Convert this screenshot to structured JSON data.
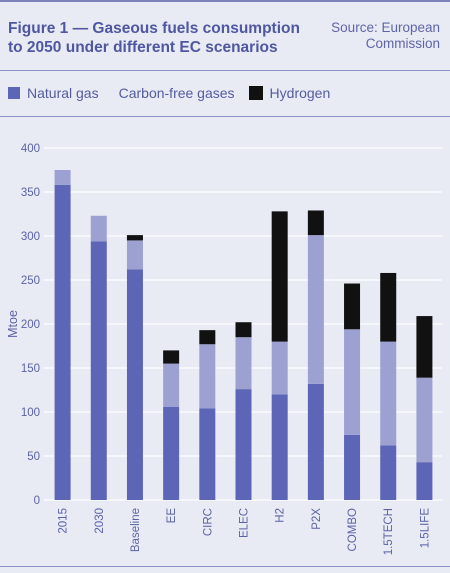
{
  "header": {
    "title_line1": "Figure 1 — Gaseous fuels consumption",
    "title_line2": "to 2050 under different EC scenarios",
    "source_line1": "Source: European",
    "source_line2": "Commission"
  },
  "colors": {
    "natural_gas": "#5d65b7",
    "carbon_free": "#9da1d2",
    "hydrogen": "#111111",
    "grid": "#ffffff",
    "text": "#5b63a6",
    "background": "#e8eaf4"
  },
  "chart_data": {
    "type": "bar",
    "stacked": true,
    "ylabel": "Mtoe",
    "xlabel": "",
    "ylim": [
      0,
      400
    ],
    "yticks": [
      "0",
      "50",
      "100",
      "150",
      "200",
      "250",
      "300",
      "350",
      "400"
    ],
    "grid": true,
    "legend_position": "top",
    "categories": [
      "2015",
      "2030",
      "Baseline",
      "EE",
      "CIRC",
      "ELEC",
      "H2",
      "P2X",
      "COMBO",
      "1.5TECH",
      "1.5LIFE"
    ],
    "series": [
      {
        "name": "Natural gas",
        "values": [
          358,
          294,
          262,
          106,
          104,
          126,
          120,
          132,
          74,
          62,
          43
        ]
      },
      {
        "name": "Carbon-free gases",
        "values": [
          17,
          29,
          33,
          49,
          73,
          59,
          60,
          169,
          120,
          118,
          96
        ]
      },
      {
        "name": "Hydrogen",
        "values": [
          0,
          0,
          6,
          15,
          16,
          17,
          148,
          28,
          52,
          78,
          70
        ]
      }
    ]
  }
}
